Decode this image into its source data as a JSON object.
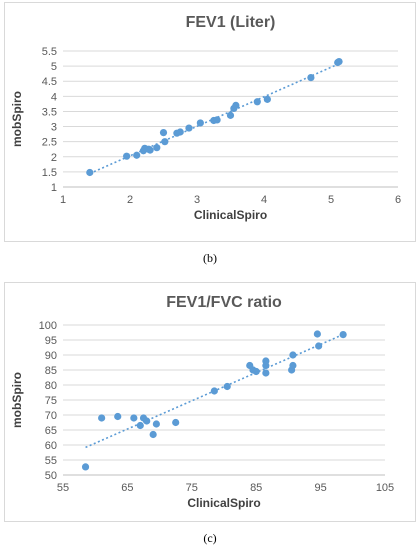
{
  "chart_data": [
    {
      "type": "scatter",
      "title": "FEV1 (Liter)",
      "xlabel": "ClinicalSpiro",
      "ylabel": "mobSpiro",
      "xlim": [
        1,
        6
      ],
      "ylim": [
        1,
        5.5
      ],
      "xticks": [
        1,
        2,
        3,
        4,
        5,
        6
      ],
      "yticks": [
        1,
        1.5,
        2,
        2.5,
        3,
        3.5,
        4,
        4.5,
        5,
        5.5
      ],
      "xtick_labels": [
        "1",
        "2",
        "3",
        "4",
        "5",
        "6"
      ],
      "ytick_labels": [
        "1",
        "1.5",
        "2",
        "2.5",
        "3",
        "3.5",
        "4",
        "4.5",
        "5",
        "5.5"
      ],
      "grid": "horizontal",
      "trendline": "linear-dotted",
      "color": "#5b9bd5",
      "caption": "(b)",
      "points": [
        [
          1.4,
          1.48
        ],
        [
          1.95,
          2.02
        ],
        [
          2.1,
          2.05
        ],
        [
          2.2,
          2.2
        ],
        [
          2.22,
          2.28
        ],
        [
          2.28,
          2.25
        ],
        [
          2.3,
          2.22
        ],
        [
          2.4,
          2.3
        ],
        [
          2.5,
          2.8
        ],
        [
          2.52,
          2.5
        ],
        [
          2.7,
          2.78
        ],
        [
          2.75,
          2.82
        ],
        [
          2.88,
          2.95
        ],
        [
          3.05,
          3.12
        ],
        [
          3.25,
          3.2
        ],
        [
          3.3,
          3.22
        ],
        [
          3.5,
          3.37
        ],
        [
          3.55,
          3.6
        ],
        [
          3.58,
          3.7
        ],
        [
          3.9,
          3.82
        ],
        [
          4.05,
          3.9
        ],
        [
          4.7,
          4.62
        ],
        [
          5.1,
          5.12
        ],
        [
          5.12,
          5.15
        ]
      ]
    },
    {
      "type": "scatter",
      "title": "FEV1/FVC ratio",
      "xlabel": "ClinicalSpiro",
      "ylabel": "mobSpiro",
      "xlim": [
        55,
        105
      ],
      "ylim": [
        50,
        100
      ],
      "xticks": [
        55,
        65,
        75,
        85,
        95,
        105
      ],
      "yticks": [
        50,
        55,
        60,
        65,
        70,
        75,
        80,
        85,
        90,
        95,
        100
      ],
      "xtick_labels": [
        "55",
        "65",
        "75",
        "85",
        "95",
        "105"
      ],
      "ytick_labels": [
        "50",
        "55",
        "60",
        "65",
        "70",
        "75",
        "80",
        "85",
        "90",
        "95",
        "100"
      ],
      "grid": "horizontal",
      "trendline": "linear-dotted",
      "color": "#5b9bd5",
      "caption": "(c)",
      "points": [
        [
          58.5,
          52.7
        ],
        [
          61,
          69
        ],
        [
          63.5,
          69.5
        ],
        [
          66,
          69
        ],
        [
          67,
          66.5
        ],
        [
          67.5,
          69
        ],
        [
          68,
          68
        ],
        [
          69,
          63.5
        ],
        [
          69.5,
          67
        ],
        [
          72.5,
          67.5
        ],
        [
          78.5,
          78
        ],
        [
          80.5,
          79.5
        ],
        [
          84,
          86.5
        ],
        [
          84.5,
          85
        ],
        [
          85,
          84.5
        ],
        [
          86.5,
          84
        ],
        [
          86.5,
          86.5
        ],
        [
          86.5,
          88
        ],
        [
          90.5,
          85
        ],
        [
          90.7,
          86.5
        ],
        [
          90.7,
          90
        ],
        [
          94.5,
          97
        ],
        [
          94.7,
          93
        ],
        [
          98.5,
          96.8
        ]
      ]
    }
  ]
}
